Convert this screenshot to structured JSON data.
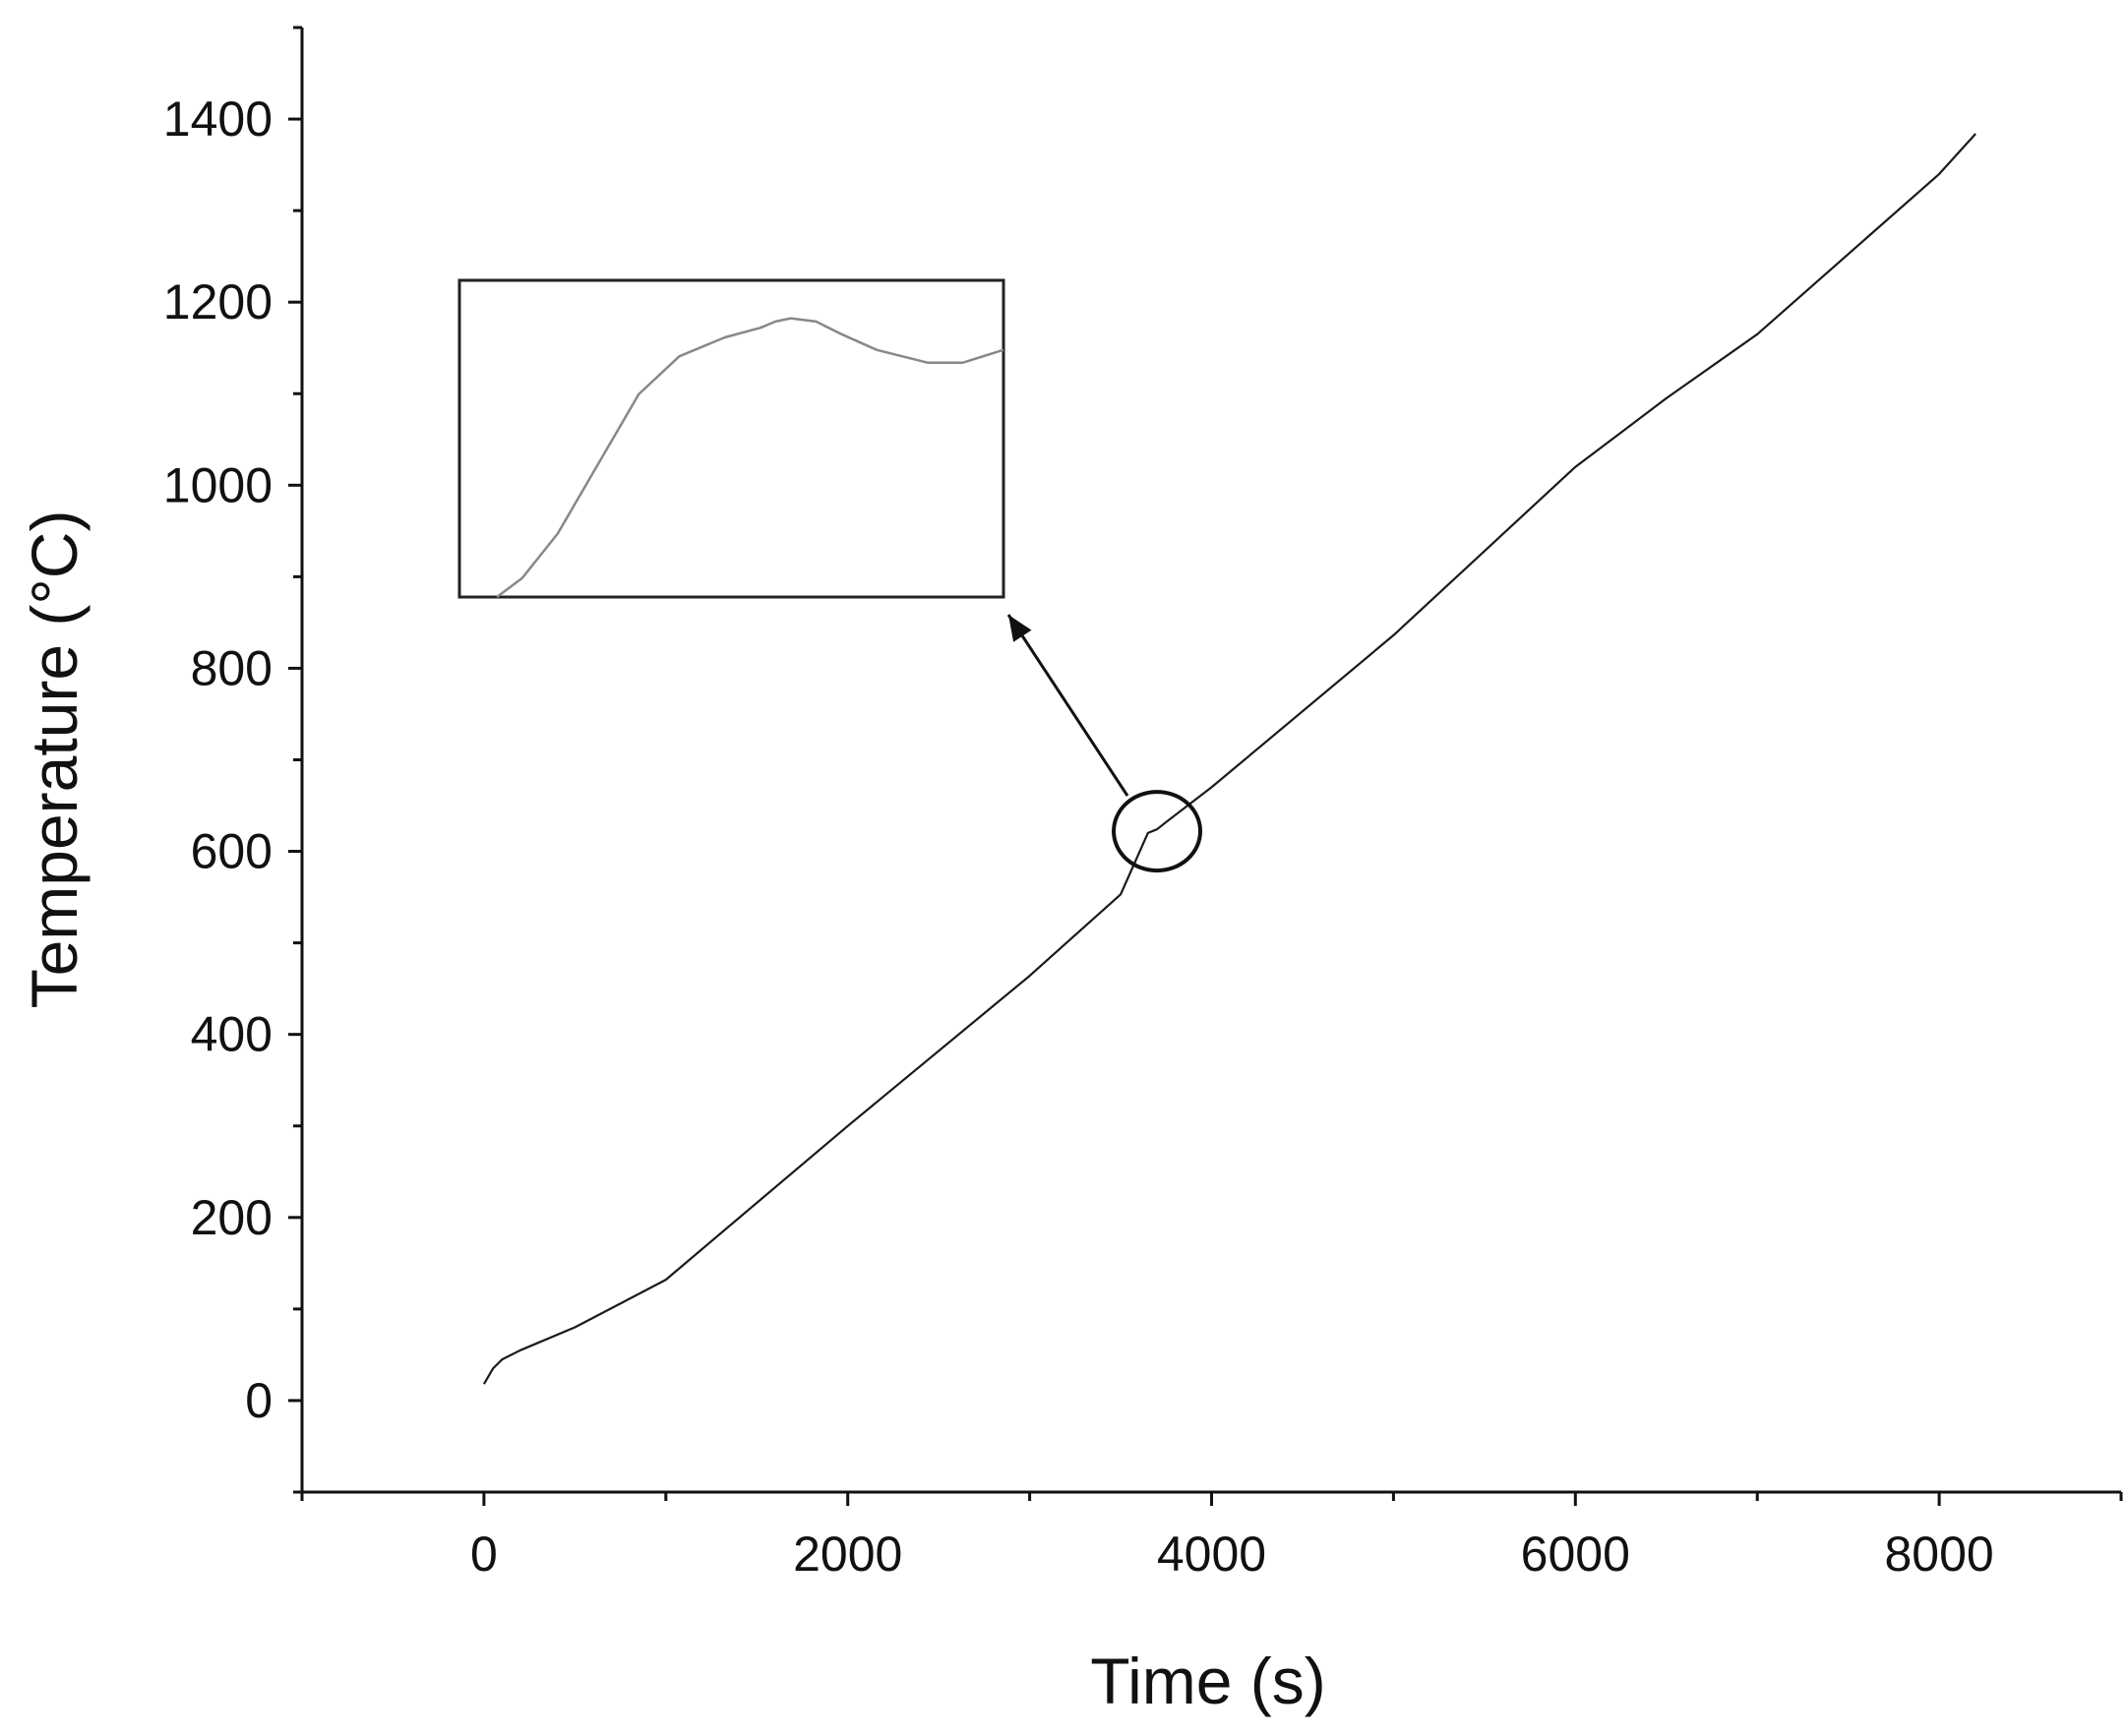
{
  "chart_data": {
    "type": "line",
    "title": "",
    "xlabel": "Time (s)",
    "ylabel": "Temperature (°C)",
    "xlim": [
      -1000,
      9000
    ],
    "ylim": [
      -100,
      1500
    ],
    "x_ticks": [
      0,
      2000,
      4000,
      6000,
      8000
    ],
    "y_ticks": [
      0,
      200,
      400,
      600,
      800,
      1000,
      1200,
      1400
    ],
    "x_minor_step": 1000,
    "y_minor_step": 100,
    "grid": false,
    "legend": "none",
    "colors": {
      "series": "#1a1a1a",
      "inset_curve": "#888888",
      "axes": "#111111"
    },
    "series": [
      {
        "x": [
          0,
          50,
          100,
          200,
          500,
          1000,
          2000,
          3000,
          3500,
          3650,
          3700,
          3750,
          4000,
          5000,
          6000,
          6500,
          7000,
          8000,
          8200
        ],
        "y": [
          18,
          35,
          45,
          55,
          80,
          132,
          300,
          464,
          553,
          620,
          624,
          632,
          670,
          836,
          1020,
          1095,
          1165,
          1340,
          1384
        ]
      }
    ],
    "annotations": {
      "highlight": {
        "x": 3700,
        "y": 622
      },
      "inset_curve": {
        "x": [
          0,
          0.05,
          0.12,
          0.2,
          0.28,
          0.36,
          0.45,
          0.52,
          0.55,
          0.58,
          0.63,
          0.68,
          0.75,
          0.85,
          0.92,
          1.0
        ],
        "y": [
          0.0,
          0.06,
          0.2,
          0.42,
          0.64,
          0.76,
          0.82,
          0.85,
          0.87,
          0.88,
          0.87,
          0.83,
          0.78,
          0.74,
          0.74,
          0.78
        ]
      }
    }
  }
}
